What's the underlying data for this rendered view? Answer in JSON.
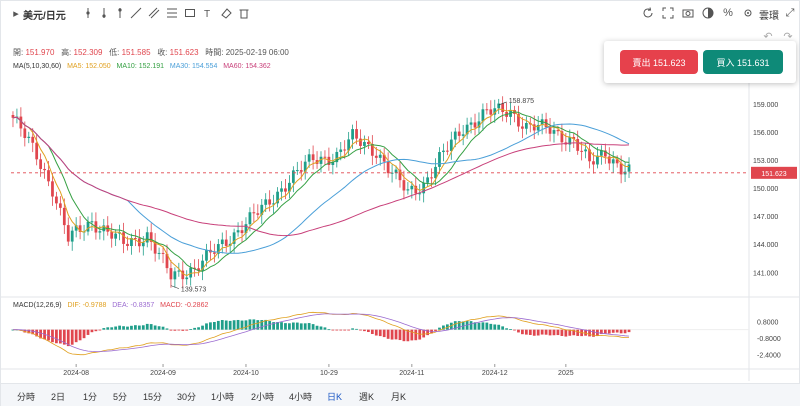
{
  "header": {
    "title": "美元/日元",
    "right_label": "雲環"
  },
  "ohlc": {
    "open_label": "開:",
    "open": "151.970",
    "high_label": "高:",
    "high": "152.309",
    "low_label": "低:",
    "low": "151.585",
    "close_label": "收:",
    "close": "151.623",
    "time_label": "時間:",
    "time": "2025-02-19 06:00"
  },
  "ma": {
    "label": "MA(5,10,30,60)",
    "ma5": "MA5: 152.050",
    "ma10": "MA10: 152.191",
    "ma30": "MA30: 154.554",
    "ma60": "MA60: 154.362"
  },
  "macd": {
    "label": "MACD(12,26,9)",
    "dif": "DIF: -0.9788",
    "dea": "DEA: -0.8357",
    "macd": "MACD: -0.2862"
  },
  "trade": {
    "sell": "賣出 151.623",
    "buy": "買入 151.631"
  },
  "timeframes": [
    "分時",
    "2日",
    "1分",
    "5分",
    "15分",
    "30分",
    "1小時",
    "2小時",
    "4小時",
    "日K",
    "週K",
    "月K"
  ],
  "active_timeframe": "日K",
  "colors": {
    "up": "#1f9e8a",
    "down": "#e0464e",
    "ma5": "#e0a020",
    "ma10": "#35a043",
    "ma30": "#4a9fd8",
    "ma60": "#c8407a",
    "accent": "#1a56c4"
  },
  "icons": [
    "undo-icon",
    "redo-icon",
    "refresh-icon",
    "fullscreen-icon",
    "theme-icon",
    "percent-icon"
  ],
  "chart_data": {
    "type": "candlestick",
    "x_tick_labels": [
      "2024-08",
      "2024-09",
      "2024-10",
      "10-29",
      "2024-11",
      "2024-12",
      "2025"
    ],
    "y_tick_labels": [
      "141.000",
      "144.000",
      "147.000",
      "150.000",
      "153.000",
      "156.000",
      "159.000",
      "162.000"
    ],
    "ylim": [
      139,
      162.5
    ],
    "current_price": "151.623",
    "annotations": [
      {
        "text": "158.875",
        "value": 158.875
      },
      {
        "text": "139.573",
        "value": 139.573
      }
    ],
    "macd_tick_labels": [
      "0.8000",
      "-0.8000",
      "-2.4000"
    ],
    "macd_ylim": [
      -3.2,
      1.6
    ],
    "close_anchors": [
      [
        0,
        157.5
      ],
      [
        6,
        153.5
      ],
      [
        10,
        150.0
      ],
      [
        14,
        144.5
      ],
      [
        20,
        146.5
      ],
      [
        28,
        144.0
      ],
      [
        34,
        145.0
      ],
      [
        40,
        140.5
      ],
      [
        46,
        141.5
      ],
      [
        52,
        143.5
      ],
      [
        58,
        146.0
      ],
      [
        64,
        148.0
      ],
      [
        70,
        151.0
      ],
      [
        76,
        153.0
      ],
      [
        82,
        153.5
      ],
      [
        86,
        155.3
      ],
      [
        92,
        154.0
      ],
      [
        96,
        151.5
      ],
      [
        100,
        149.5
      ],
      [
        104,
        150.5
      ],
      [
        108,
        153.0
      ],
      [
        114,
        156.5
      ],
      [
        120,
        158.0
      ],
      [
        126,
        158.3
      ],
      [
        130,
        156.5
      ],
      [
        136,
        156.3
      ],
      [
        142,
        155.0
      ],
      [
        146,
        152.5
      ],
      [
        150,
        154.0
      ],
      [
        154,
        152.0
      ],
      [
        156,
        151.6
      ]
    ],
    "candle_count": 157
  }
}
